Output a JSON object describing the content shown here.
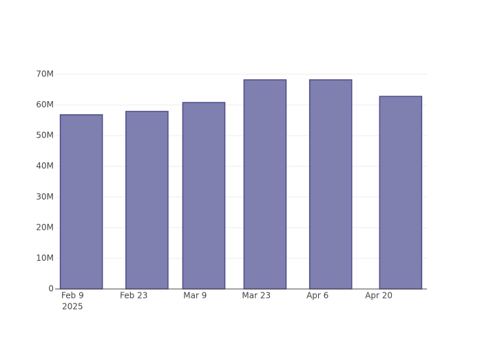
{
  "chart_data": {
    "type": "bar",
    "x": [
      "2025-02-11",
      "2025-02-26",
      "2025-03-11",
      "2025-03-25",
      "2025-04-09",
      "2025-04-25"
    ],
    "values": [
      56.8,
      57.9,
      60.8,
      68.2,
      68.2,
      62.8
    ],
    "color": "#7f7fb0",
    "edge_color": "#4b4b8c",
    "xlim": [
      "2025-02-05",
      "2025-05-01"
    ],
    "xticks": [
      {
        "value": "2025-02-09",
        "label": "Feb 9"
      },
      {
        "value": "2025-02-23",
        "label": "Feb 23"
      },
      {
        "value": "2025-03-09",
        "label": "Mar 9"
      },
      {
        "value": "2025-03-23",
        "label": "Mar 23"
      },
      {
        "value": "2025-04-06",
        "label": "Apr 6"
      },
      {
        "value": "2025-04-20",
        "label": "Apr 20"
      }
    ],
    "x_year_label": "2025",
    "ylim": [
      0,
      70
    ],
    "yticks": [
      0,
      {
        "value": 10,
        "label": "10M"
      },
      {
        "value": 20,
        "label": "20M"
      },
      {
        "value": 30,
        "label": "30M"
      },
      {
        "value": 40,
        "label": "40M"
      },
      {
        "value": 50,
        "label": "50M"
      },
      {
        "value": 60,
        "label": "60M"
      },
      {
        "value": 70,
        "label": "70M"
      }
    ],
    "grid": true
  }
}
